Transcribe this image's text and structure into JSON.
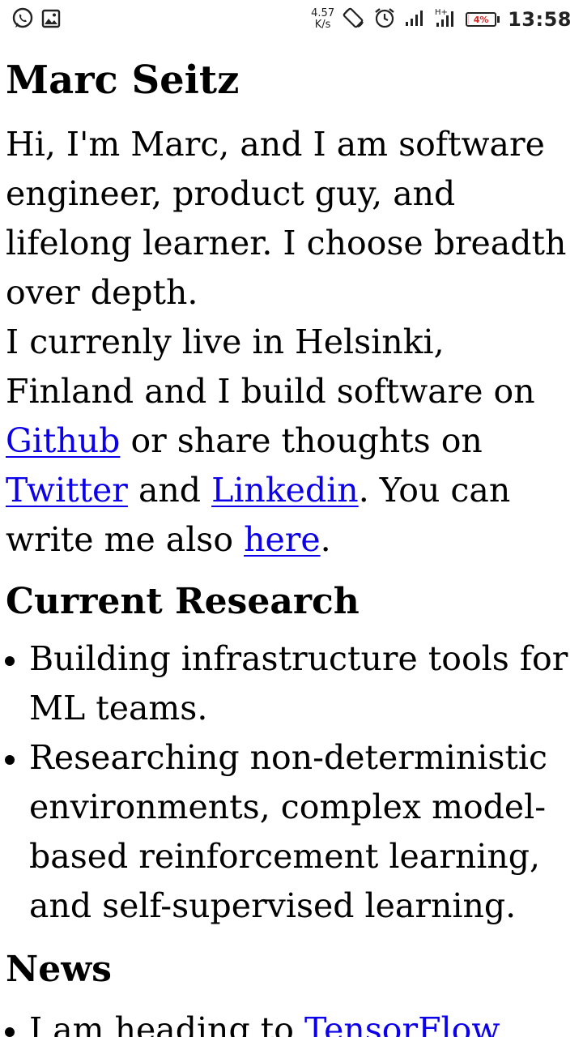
{
  "status_bar": {
    "left_icons": [
      "whatsapp-icon",
      "image-icon"
    ],
    "speed_value": "4.57",
    "speed_unit": "K/s",
    "battery_percent": 4,
    "battery_label": "4%",
    "time": "13:58"
  },
  "page": {
    "title": "Marc Seitz",
    "intro": {
      "part1": "Hi, I'm Marc, and I am software engineer, product guy, and lifelong learner. I choose breadth over depth.",
      "part2": "I currenly live in Helsinki, Finland and I build software on ",
      "github_link": "Github",
      "part3": " or share thoughts on ",
      "twitter_link": "Twitter",
      "part4": " and ",
      "linkedin_link": "Linkedin",
      "part5": ". You can write me also ",
      "here_link": "here",
      "part6": "."
    },
    "research": {
      "heading": "Current Research",
      "items": [
        "Building infrastructure tools for ML teams.",
        "Researching non-deterministic environments, complex model-based reinforcement learning, and self-supervised learning."
      ]
    },
    "news": {
      "heading": "News",
      "item_text": "I am heading to ",
      "item_link": "TensorFlow"
    }
  },
  "colors": {
    "link": "#0b00e8",
    "battery_low": "#e02020"
  }
}
